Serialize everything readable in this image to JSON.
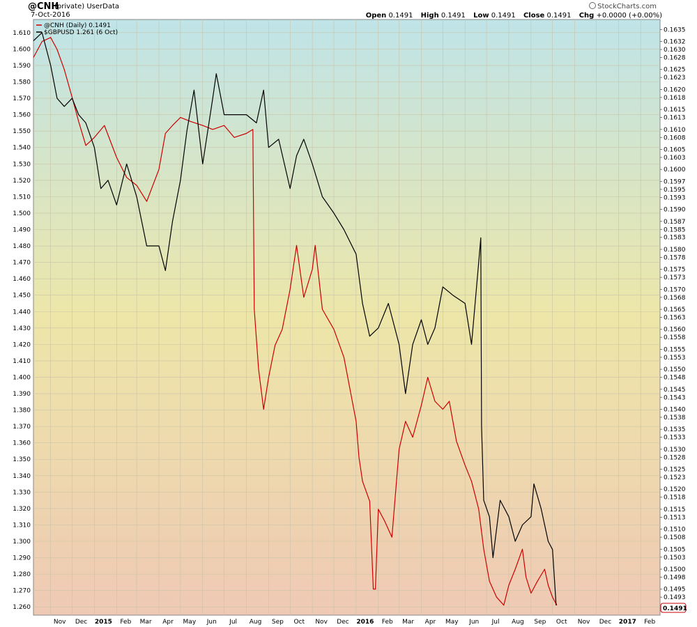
{
  "header": {
    "symbol": "@CNH",
    "subtitle": "(private) UserData",
    "date": "7-Oct-2016",
    "brand": "StockCharts.com",
    "ohlc": {
      "open_label": "Open",
      "open": "0.1491",
      "high_label": "High",
      "high": "0.1491",
      "low_label": "Low",
      "low": "0.1491",
      "close_label": "Close",
      "close": "0.1491",
      "chg_label": "Chg",
      "chg": "+0.0000 (+0.00%)"
    }
  },
  "legend": [
    {
      "label": "@CNH (Daily) 0.1491",
      "color": "#cc0000"
    },
    {
      "label": "$GBPUSD 1.261 (6 Oct)",
      "color": "#000000"
    }
  ],
  "colors": {
    "cnh": "#cc0000",
    "gbp": "#000000",
    "bg_top": "#bfe4e8",
    "bg_mid": "#ede6a8",
    "bg_bottom": "#efc9b4"
  },
  "last_value_badge": "0.1491",
  "chart_data": {
    "type": "line",
    "x_axis": {
      "start": "2014-10-08",
      "end": "2017-02-28",
      "tick_labels": [
        {
          "date": "2014-11-01",
          "label": "Nov",
          "bold": false
        },
        {
          "date": "2014-12-01",
          "label": "Dec",
          "bold": false
        },
        {
          "date": "2015-01-01",
          "label": "2015",
          "bold": true
        },
        {
          "date": "2015-02-01",
          "label": "Feb",
          "bold": false
        },
        {
          "date": "2015-03-01",
          "label": "Mar",
          "bold": false
        },
        {
          "date": "2015-04-01",
          "label": "Apr",
          "bold": false
        },
        {
          "date": "2015-05-01",
          "label": "May",
          "bold": false
        },
        {
          "date": "2015-06-01",
          "label": "Jun",
          "bold": false
        },
        {
          "date": "2015-07-01",
          "label": "Jul",
          "bold": false
        },
        {
          "date": "2015-08-01",
          "label": "Aug",
          "bold": false
        },
        {
          "date": "2015-09-01",
          "label": "Sep",
          "bold": false
        },
        {
          "date": "2015-10-01",
          "label": "Oct",
          "bold": false
        },
        {
          "date": "2015-11-01",
          "label": "Nov",
          "bold": false
        },
        {
          "date": "2015-12-01",
          "label": "Dec",
          "bold": false
        },
        {
          "date": "2016-01-01",
          "label": "2016",
          "bold": true
        },
        {
          "date": "2016-02-01",
          "label": "Feb",
          "bold": false
        },
        {
          "date": "2016-03-01",
          "label": "Mar",
          "bold": false
        },
        {
          "date": "2016-04-01",
          "label": "Apr",
          "bold": false
        },
        {
          "date": "2016-05-01",
          "label": "May",
          "bold": false
        },
        {
          "date": "2016-06-01",
          "label": "Jun",
          "bold": false
        },
        {
          "date": "2016-07-01",
          "label": "Jul",
          "bold": false
        },
        {
          "date": "2016-08-01",
          "label": "Aug",
          "bold": false
        },
        {
          "date": "2016-09-01",
          "label": "Sep",
          "bold": false
        },
        {
          "date": "2016-10-01",
          "label": "Oct",
          "bold": false
        },
        {
          "date": "2016-11-01",
          "label": "Nov",
          "bold": false
        },
        {
          "date": "2016-12-01",
          "label": "Dec",
          "bold": false
        },
        {
          "date": "2017-01-01",
          "label": "2017",
          "bold": true
        },
        {
          "date": "2017-02-01",
          "label": "Feb",
          "bold": false
        }
      ]
    },
    "y_left": {
      "min": 1.255,
      "max": 1.618,
      "ticks": [
        "1.610",
        "1.600",
        "1.590",
        "1.580",
        "1.570",
        "1.560",
        "1.550",
        "1.540",
        "1.530",
        "1.520",
        "1.510",
        "1.500",
        "1.490",
        "1.480",
        "1.470",
        "1.460",
        "1.450",
        "1.440",
        "1.430",
        "1.420",
        "1.410",
        "1.400",
        "1.390",
        "1.380",
        "1.370",
        "1.360",
        "1.350",
        "1.340",
        "1.330",
        "1.320",
        "1.310",
        "1.300",
        "1.290",
        "1.280",
        "1.270",
        "1.260"
      ]
    },
    "y_right": {
      "min": 0.14885,
      "max": 0.16375,
      "ticks": [
        "0.1635",
        "0.1632",
        "0.1630",
        "0.1628",
        "0.1625",
        "0.1623",
        "0.1620",
        "0.1618",
        "0.1615",
        "0.1613",
        "0.1610",
        "0.1608",
        "0.1605",
        "0.1603",
        "0.1600",
        "0.1597",
        "0.1595",
        "0.1593",
        "0.1590",
        "0.1587",
        "0.1585",
        "0.1583",
        "0.1580",
        "0.1578",
        "0.1575",
        "0.1573",
        "0.1570",
        "0.1568",
        "0.1565",
        "0.1563",
        "0.1560",
        "0.1558",
        "0.1555",
        "0.1553",
        "0.1550",
        "0.1548",
        "0.1545",
        "0.1543",
        "0.1540",
        "0.1538",
        "0.1535",
        "0.1533",
        "0.1530",
        "0.1528",
        "0.1525",
        "0.1523",
        "0.1520",
        "0.1518",
        "0.1515",
        "0.1513",
        "0.1510",
        "0.1508",
        "0.1505",
        "0.1503",
        "0.1500",
        "0.1498",
        "0.1495",
        "0.1493"
      ]
    },
    "series": [
      {
        "name": "@CNH (Daily) 0.1491",
        "axis": "right",
        "points": [
          [
            "2014-10-08",
            0.1628
          ],
          [
            "2014-10-20",
            0.1632
          ],
          [
            "2014-11-01",
            0.1633
          ],
          [
            "2014-11-10",
            0.163
          ],
          [
            "2014-11-20",
            0.1625
          ],
          [
            "2014-12-01",
            0.1618
          ],
          [
            "2014-12-10",
            0.1612
          ],
          [
            "2014-12-20",
            0.1606
          ],
          [
            "2015-01-01",
            0.1608
          ],
          [
            "2015-01-15",
            0.1611
          ],
          [
            "2015-02-01",
            0.1603
          ],
          [
            "2015-02-15",
            0.1598
          ],
          [
            "2015-03-01",
            0.1596
          ],
          [
            "2015-03-15",
            0.1592
          ],
          [
            "2015-04-01",
            0.16
          ],
          [
            "2015-04-10",
            0.1609
          ],
          [
            "2015-04-20",
            0.1611
          ],
          [
            "2015-05-01",
            0.1613
          ],
          [
            "2015-05-15",
            0.1612
          ],
          [
            "2015-06-01",
            0.1611
          ],
          [
            "2015-06-15",
            0.161
          ],
          [
            "2015-07-01",
            0.1611
          ],
          [
            "2015-07-15",
            0.1608
          ],
          [
            "2015-08-01",
            0.1609
          ],
          [
            "2015-08-10",
            0.161
          ],
          [
            "2015-08-12",
            0.1565
          ],
          [
            "2015-08-18",
            0.155
          ],
          [
            "2015-08-25",
            0.154
          ],
          [
            "2015-09-01",
            0.1548
          ],
          [
            "2015-09-10",
            0.1556
          ],
          [
            "2015-09-20",
            0.156
          ],
          [
            "2015-10-01",
            0.157
          ],
          [
            "2015-10-10",
            0.1581
          ],
          [
            "2015-10-20",
            0.1568
          ],
          [
            "2015-11-01",
            0.1575
          ],
          [
            "2015-11-05",
            0.1581
          ],
          [
            "2015-11-15",
            0.1565
          ],
          [
            "2015-12-01",
            0.156
          ],
          [
            "2015-12-15",
            0.1553
          ],
          [
            "2016-01-01",
            0.1537
          ],
          [
            "2016-01-05",
            0.1528
          ],
          [
            "2016-01-10",
            0.1522
          ],
          [
            "2016-01-20",
            0.1517
          ],
          [
            "2016-01-25",
            0.1495
          ],
          [
            "2016-01-28",
            0.1495
          ],
          [
            "2016-02-01",
            0.1515
          ],
          [
            "2016-02-10",
            0.1512
          ],
          [
            "2016-02-20",
            0.1508
          ],
          [
            "2016-03-01",
            0.153
          ],
          [
            "2016-03-10",
            0.1537
          ],
          [
            "2016-03-20",
            0.1533
          ],
          [
            "2016-04-01",
            0.1541
          ],
          [
            "2016-04-10",
            0.1548
          ],
          [
            "2016-04-20",
            0.1542
          ],
          [
            "2016-05-01",
            0.154
          ],
          [
            "2016-05-10",
            0.1542
          ],
          [
            "2016-05-20",
            0.1532
          ],
          [
            "2016-06-01",
            0.1526
          ],
          [
            "2016-06-10",
            0.1522
          ],
          [
            "2016-06-20",
            0.1515
          ],
          [
            "2016-06-27",
            0.1505
          ],
          [
            "2016-07-05",
            0.1497
          ],
          [
            "2016-07-15",
            0.1493
          ],
          [
            "2016-07-25",
            0.1491
          ],
          [
            "2016-08-01",
            0.1496
          ],
          [
            "2016-08-10",
            0.15
          ],
          [
            "2016-08-20",
            0.1505
          ],
          [
            "2016-08-25",
            0.1498
          ],
          [
            "2016-09-01",
            0.1494
          ],
          [
            "2016-09-10",
            0.1497
          ],
          [
            "2016-09-20",
            0.15
          ],
          [
            "2016-09-25",
            0.1496
          ],
          [
            "2016-10-01",
            0.1493
          ],
          [
            "2016-10-07",
            0.1491
          ]
        ]
      },
      {
        "name": "$GBPUSD 1.261 (6 Oct)",
        "axis": "left",
        "points": [
          [
            "2014-10-08",
            1.605
          ],
          [
            "2014-10-20",
            1.61
          ],
          [
            "2014-11-01",
            1.59
          ],
          [
            "2014-11-10",
            1.57
          ],
          [
            "2014-11-20",
            1.565
          ],
          [
            "2014-12-01",
            1.57
          ],
          [
            "2014-12-10",
            1.56
          ],
          [
            "2014-12-20",
            1.555
          ],
          [
            "2015-01-01",
            1.54
          ],
          [
            "2015-01-10",
            1.515
          ],
          [
            "2015-01-20",
            1.52
          ],
          [
            "2015-02-01",
            1.505
          ],
          [
            "2015-02-15",
            1.53
          ],
          [
            "2015-03-01",
            1.51
          ],
          [
            "2015-03-15",
            1.48
          ],
          [
            "2015-04-01",
            1.48
          ],
          [
            "2015-04-10",
            1.465
          ],
          [
            "2015-04-20",
            1.495
          ],
          [
            "2015-05-01",
            1.52
          ],
          [
            "2015-05-10",
            1.55
          ],
          [
            "2015-05-20",
            1.575
          ],
          [
            "2015-06-01",
            1.53
          ],
          [
            "2015-06-15",
            1.57
          ],
          [
            "2015-06-20",
            1.585
          ],
          [
            "2015-07-01",
            1.56
          ],
          [
            "2015-07-15",
            1.56
          ],
          [
            "2015-08-01",
            1.56
          ],
          [
            "2015-08-15",
            1.555
          ],
          [
            "2015-08-25",
            1.575
          ],
          [
            "2015-09-01",
            1.54
          ],
          [
            "2015-09-15",
            1.545
          ],
          [
            "2015-10-01",
            1.515
          ],
          [
            "2015-10-10",
            1.535
          ],
          [
            "2015-10-20",
            1.545
          ],
          [
            "2015-11-01",
            1.53
          ],
          [
            "2015-11-15",
            1.51
          ],
          [
            "2015-12-01",
            1.5
          ],
          [
            "2015-12-15",
            1.49
          ],
          [
            "2016-01-01",
            1.475
          ],
          [
            "2016-01-10",
            1.445
          ],
          [
            "2016-01-20",
            1.425
          ],
          [
            "2016-02-01",
            1.43
          ],
          [
            "2016-02-15",
            1.445
          ],
          [
            "2016-03-01",
            1.42
          ],
          [
            "2016-03-10",
            1.39
          ],
          [
            "2016-03-20",
            1.42
          ],
          [
            "2016-04-01",
            1.435
          ],
          [
            "2016-04-10",
            1.42
          ],
          [
            "2016-04-20",
            1.43
          ],
          [
            "2016-05-01",
            1.455
          ],
          [
            "2016-05-15",
            1.45
          ],
          [
            "2016-06-01",
            1.445
          ],
          [
            "2016-06-10",
            1.42
          ],
          [
            "2016-06-20",
            1.47
          ],
          [
            "2016-06-23",
            1.485
          ],
          [
            "2016-06-24",
            1.37
          ],
          [
            "2016-06-27",
            1.325
          ],
          [
            "2016-07-05",
            1.315
          ],
          [
            "2016-07-10",
            1.29
          ],
          [
            "2016-07-20",
            1.325
          ],
          [
            "2016-08-01",
            1.315
          ],
          [
            "2016-08-10",
            1.3
          ],
          [
            "2016-08-20",
            1.31
          ],
          [
            "2016-09-01",
            1.315
          ],
          [
            "2016-09-05",
            1.335
          ],
          [
            "2016-09-15",
            1.32
          ],
          [
            "2016-09-25",
            1.3
          ],
          [
            "2016-10-01",
            1.295
          ],
          [
            "2016-10-06",
            1.261
          ]
        ]
      }
    ]
  }
}
